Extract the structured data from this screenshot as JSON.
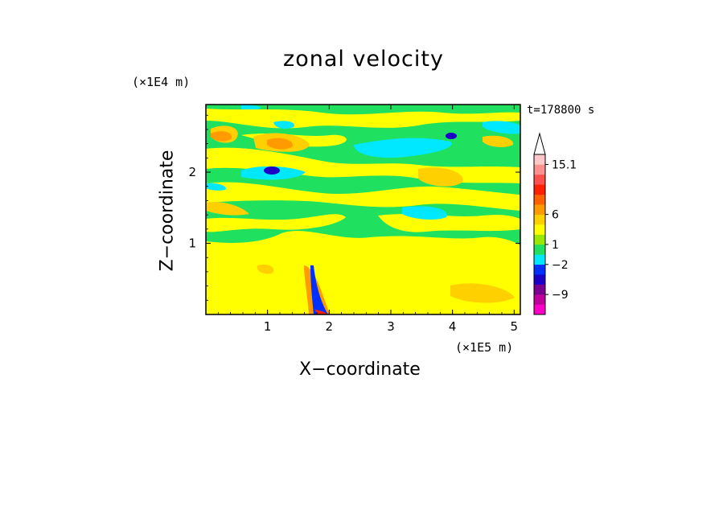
{
  "chart_data": {
    "type": "heatmap",
    "title": "zonal velocity",
    "xlabel": "X−coordinate",
    "ylabel": "Z−coordinate",
    "x_unit": "(×1E5 m)",
    "y_unit": "(×1E4 m)",
    "time_label": "t=178800 s",
    "xlim": [
      0,
      5.1
    ],
    "ylim": [
      0,
      2.95
    ],
    "x_ticks": [
      1,
      2,
      3,
      4,
      5
    ],
    "x_tick_labels": [
      "1",
      "2",
      "3",
      "4",
      "5"
    ],
    "y_ticks": [
      1,
      2
    ],
    "y_tick_labels": [
      "1",
      "2"
    ],
    "colorbar": {
      "colors": [
        "#ff00c8",
        "#c0009c",
        "#7a0090",
        "#1c00c8",
        "#0030ff",
        "#00e8ff",
        "#20e060",
        "#9ae800",
        "#ffff00",
        "#ffd000",
        "#ff9a00",
        "#ff6000",
        "#ff2000",
        "#ff5050",
        "#ff9090",
        "#ffc8c8"
      ],
      "tick_labels": [
        "15.1",
        "6",
        "1",
        "−2",
        "−9"
      ],
      "tick_levels": [
        15.1,
        6,
        1,
        -2,
        -9
      ]
    },
    "colors": {
      "green": "#20e060",
      "yellow": "#ffff00",
      "light_orange": "#ffd000",
      "orange": "#ff9a00",
      "cyan": "#00e8ff",
      "blue": "#0030ff",
      "dark_blue": "#1c00c8",
      "red": "#ff2000"
    }
  }
}
